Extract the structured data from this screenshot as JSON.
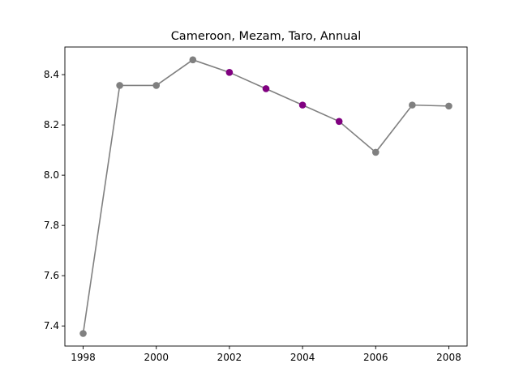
{
  "chart_data": {
    "type": "line",
    "title": "Cameroon, Mezam, Taro, Annual",
    "xlabel": "",
    "ylabel": "",
    "x": [
      1998,
      1999,
      2000,
      2001,
      2002,
      2003,
      2004,
      2005,
      2006,
      2007,
      2008
    ],
    "values": [
      7.37,
      8.357,
      8.357,
      8.459,
      8.409,
      8.344,
      8.279,
      8.214,
      8.091,
      8.279,
      8.275
    ],
    "highlighted_x": [
      2002,
      2003,
      2004,
      2005
    ],
    "xticks": [
      "1998",
      "2000",
      "2002",
      "2004",
      "2006",
      "2008"
    ],
    "yticks": [
      "7.4",
      "7.6",
      "7.8",
      "8.0",
      "8.2",
      "8.4"
    ],
    "xlim": [
      1997.5,
      2008.5
    ],
    "ylim": [
      7.32,
      8.51
    ],
    "grid": false,
    "colors": {
      "line": "#808080",
      "marker": "#808080",
      "highlight_marker": "#800080"
    }
  }
}
